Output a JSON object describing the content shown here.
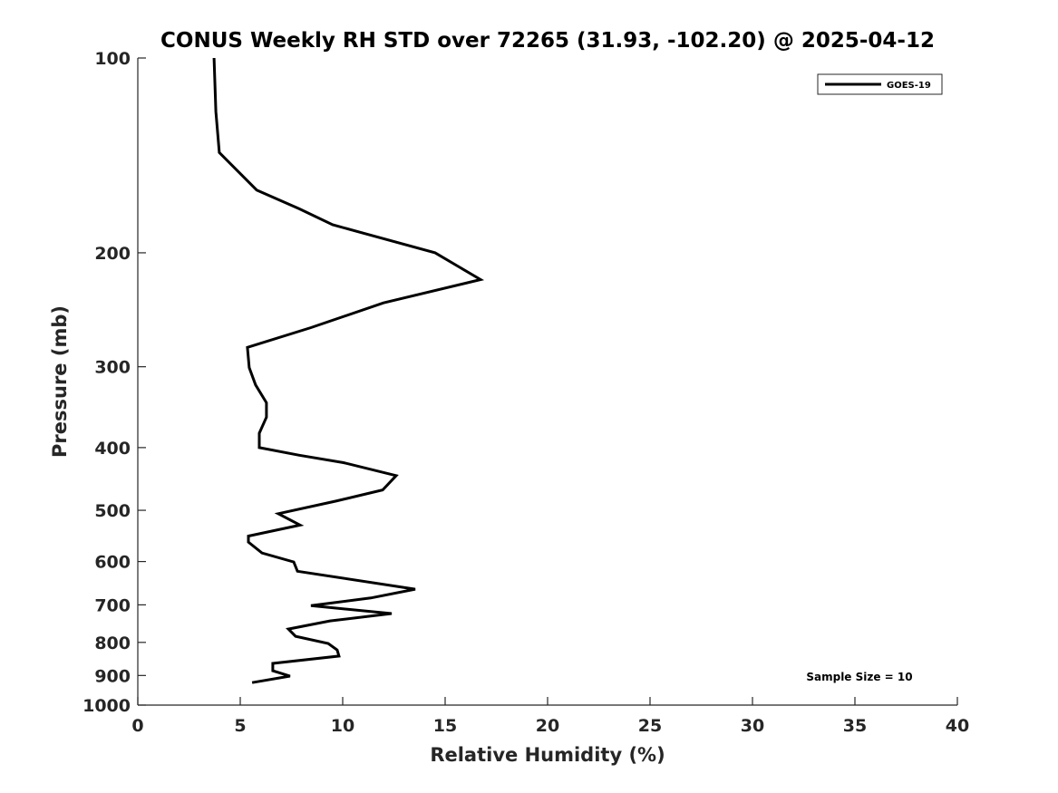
{
  "chart_data": {
    "type": "line",
    "title": "CONUS Weekly RH STD over 72265 (31.93, -102.20) @ 2025-04-12",
    "xlabel": "Relative Humidity (%)",
    "ylabel": "Pressure (mb)",
    "xlim": [
      0,
      40
    ],
    "ylim": [
      100,
      1000
    ],
    "yscale": "log",
    "yreversed": true,
    "xticks": [
      "0",
      "5",
      "10",
      "15",
      "20",
      "25",
      "30",
      "35",
      "40"
    ],
    "yticks": [
      "100",
      "200",
      "300",
      "400",
      "500",
      "600",
      "700",
      "800",
      "900",
      "1000"
    ],
    "grid": false,
    "legend": {
      "placement": "top-right",
      "entries": [
        "GOES-19"
      ]
    },
    "annotation": "Sample Size = 10",
    "series": [
      {
        "name": "GOES-19",
        "color": "#000000",
        "x": [
          3.72,
          3.81,
          3.98,
          5.8,
          7.88,
          9.51,
          14.51,
          16.73,
          11.99,
          8.45,
          5.35,
          5.44,
          5.75,
          6.28,
          6.28,
          5.93,
          5.93,
          7.88,
          10.04,
          12.61,
          11.95,
          9.65,
          6.86,
          7.92,
          5.4,
          5.4,
          6.06,
          7.61,
          7.79,
          13.54,
          11.37,
          8.45,
          12.39,
          9.38,
          7.35,
          7.7,
          9.29,
          9.73,
          9.82,
          6.59,
          6.59,
          7.43,
          5.58
        ],
        "pressure": [
          100,
          121,
          140,
          160,
          171,
          181,
          200,
          220,
          239,
          261,
          280,
          301,
          320,
          341,
          359,
          380,
          400,
          411,
          422,
          442,
          465,
          484,
          506,
          527,
          548,
          560,
          582,
          601,
          621,
          662,
          683,
          702,
          722,
          741,
          763,
          783,
          803,
          822,
          840,
          862,
          885,
          902,
          923
        ]
      }
    ]
  }
}
